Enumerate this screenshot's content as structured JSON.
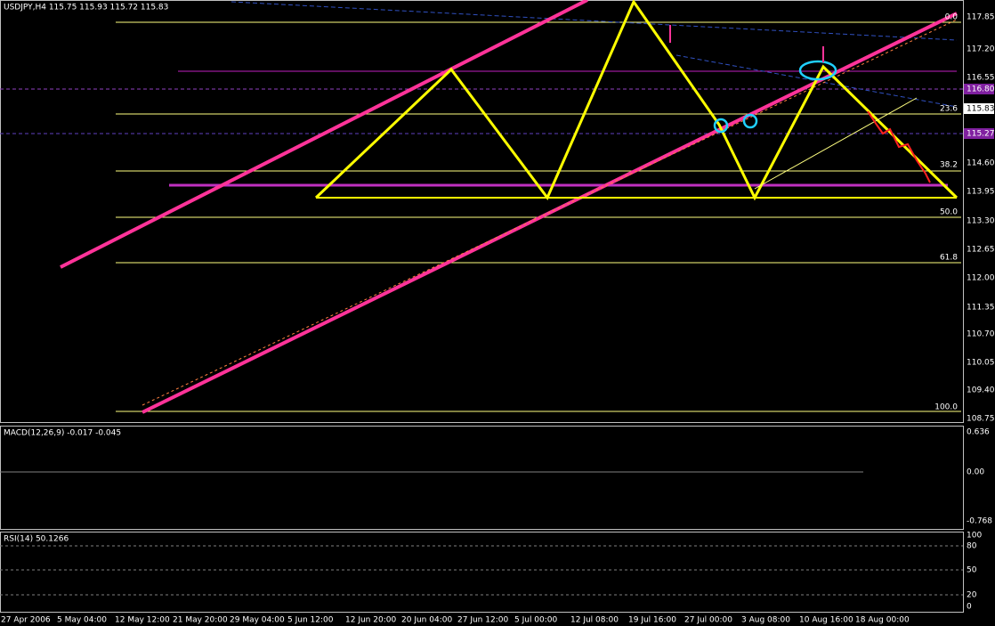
{
  "header": {
    "title": "USDJPY,H4  115.75 115.93 115.72 115.83"
  },
  "price_axis": [
    "117.85",
    "117.20",
    "116.55",
    "116.80",
    "115.83",
    "115.27",
    "114.60",
    "113.95",
    "113.30",
    "112.65",
    "112.00",
    "111.35",
    "110.70",
    "110.05",
    "109.40",
    "108.75"
  ],
  "fib_levels": [
    "0.0",
    "23.6",
    "38.2",
    "50.0",
    "61.8",
    "100.0"
  ],
  "macd": {
    "title": "MACD(12,26,9) -0.017 -0.045",
    "axis": [
      "0.636",
      "0.00",
      "-0.768"
    ]
  },
  "rsi": {
    "title": "RSI(14) 50.1266",
    "axis": [
      "100",
      "80",
      "50",
      "20",
      "0"
    ]
  },
  "time_axis": [
    "27 Apr 2006",
    "5 May 04:00",
    "12 May 12:00",
    "21 May 20:00",
    "29 May 04:00",
    "5 Jun 12:00",
    "12 Jun 20:00",
    "20 Jun 04:00",
    "27 Jun 12:00",
    "5 Jul 00:00",
    "12 Jul 08:00",
    "19 Jul 16:00",
    "27 Jul 00:00",
    "3 Aug 08:00",
    "10 Aug 16:00",
    "18 Aug 00:00"
  ]
}
